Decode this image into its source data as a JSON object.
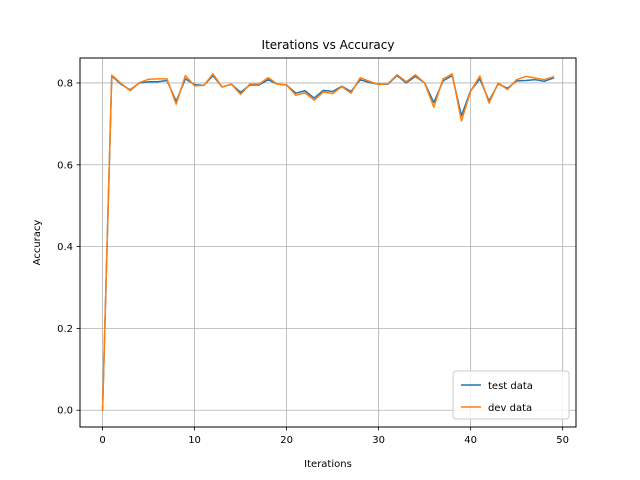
{
  "chart_data": {
    "type": "line",
    "title": "Iterations vs Accuracy",
    "xlabel": "Iterations",
    "ylabel": "Accuracy",
    "xlim": [
      -2.45,
      51.45
    ],
    "ylim": [
      -0.041,
      0.861
    ],
    "xticks": [
      0,
      10,
      20,
      30,
      40,
      50
    ],
    "yticks": [
      0.0,
      0.2,
      0.4,
      0.6,
      0.8
    ],
    "ytick_labels": [
      "0.0",
      "0.2",
      "0.4",
      "0.6",
      "0.8"
    ],
    "grid": true,
    "legend_position": "bottom-right",
    "x": [
      0,
      1,
      2,
      3,
      4,
      5,
      6,
      7,
      8,
      9,
      10,
      11,
      12,
      13,
      14,
      15,
      16,
      17,
      18,
      19,
      20,
      21,
      22,
      23,
      24,
      25,
      26,
      27,
      28,
      29,
      30,
      31,
      32,
      33,
      34,
      35,
      36,
      37,
      38,
      39,
      40,
      41,
      42,
      43,
      44,
      45,
      46,
      47,
      48,
      49
    ],
    "series": [
      {
        "name": "test data",
        "color": "#1f77b4",
        "values": [
          0.0,
          0.817,
          0.797,
          0.783,
          0.8,
          0.803,
          0.803,
          0.806,
          0.755,
          0.81,
          0.796,
          0.794,
          0.818,
          0.79,
          0.797,
          0.777,
          0.795,
          0.795,
          0.808,
          0.797,
          0.795,
          0.775,
          0.781,
          0.763,
          0.782,
          0.779,
          0.792,
          0.779,
          0.808,
          0.801,
          0.797,
          0.797,
          0.818,
          0.8,
          0.816,
          0.8,
          0.752,
          0.805,
          0.818,
          0.72,
          0.781,
          0.81,
          0.756,
          0.798,
          0.787,
          0.805,
          0.806,
          0.808,
          0.804,
          0.812
        ]
      },
      {
        "name": "dev data",
        "color": "#ff7f0e",
        "values": [
          0.0,
          0.819,
          0.799,
          0.781,
          0.801,
          0.809,
          0.81,
          0.81,
          0.748,
          0.818,
          0.793,
          0.794,
          0.822,
          0.79,
          0.797,
          0.772,
          0.797,
          0.797,
          0.813,
          0.797,
          0.795,
          0.77,
          0.776,
          0.758,
          0.778,
          0.774,
          0.791,
          0.775,
          0.813,
          0.804,
          0.796,
          0.798,
          0.82,
          0.803,
          0.82,
          0.8,
          0.741,
          0.81,
          0.822,
          0.707,
          0.78,
          0.817,
          0.751,
          0.8,
          0.784,
          0.808,
          0.816,
          0.812,
          0.808,
          0.815
        ]
      }
    ]
  }
}
